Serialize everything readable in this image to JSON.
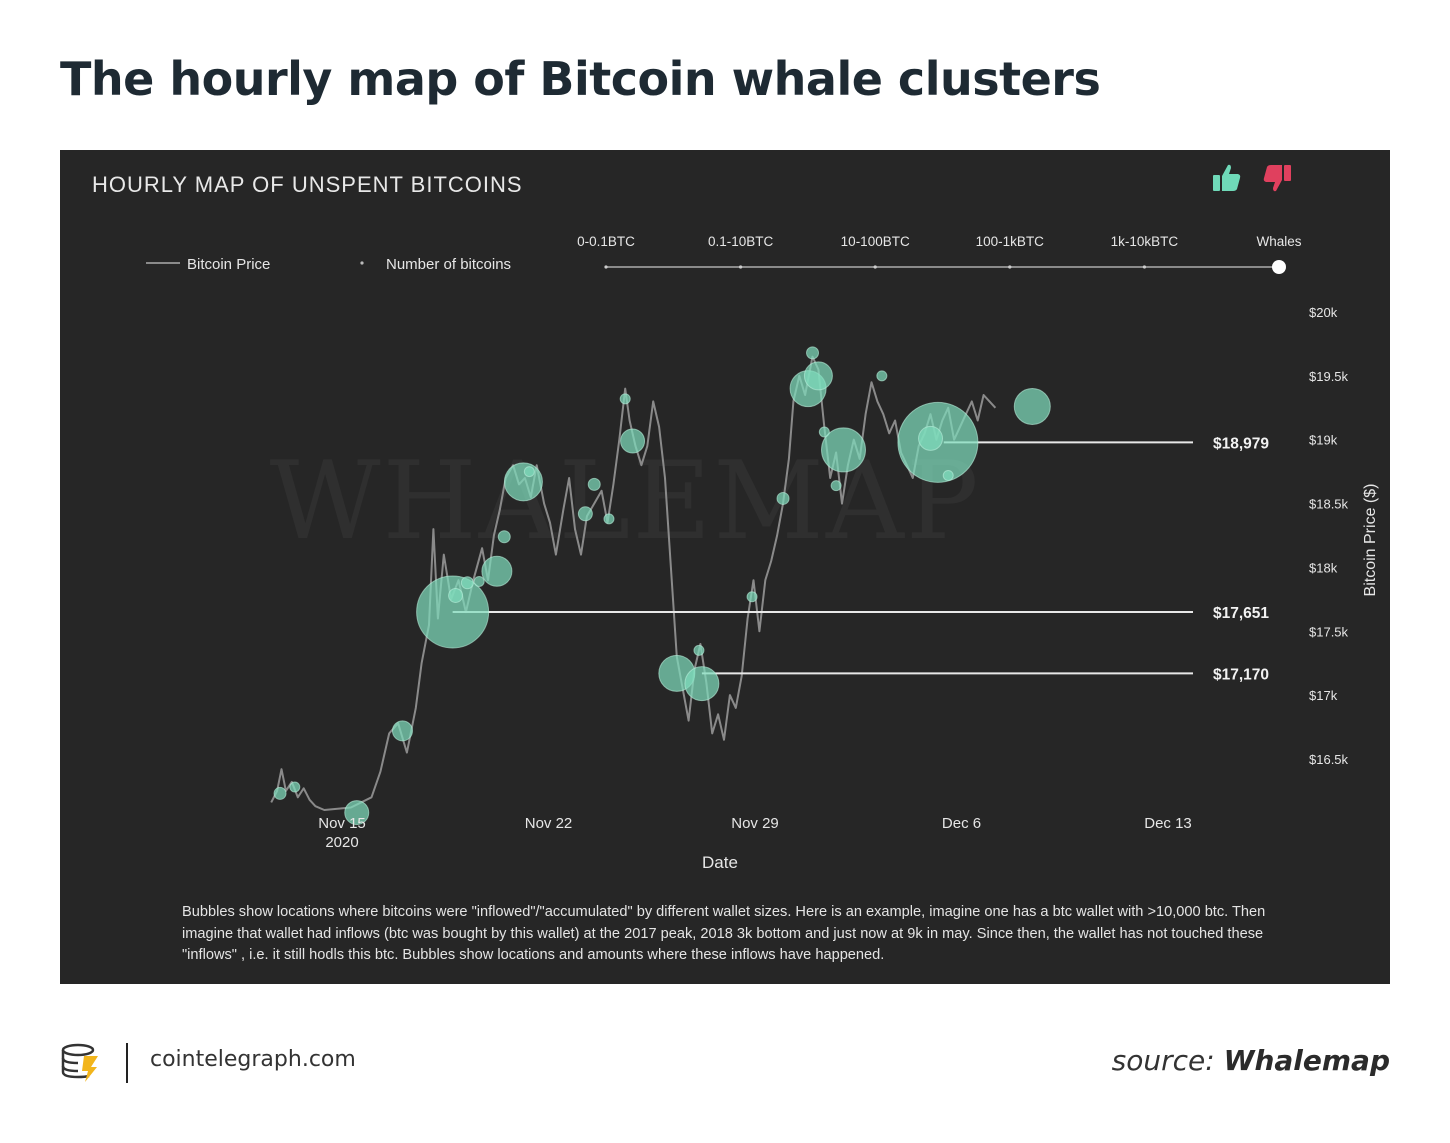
{
  "page_title": "The hourly map of Bitcoin whale clusters",
  "panel_title": "HOURLY MAP OF UNSPENT BITCOINS",
  "icons": {
    "like": "thumbs-up-icon",
    "dislike": "thumbs-down-icon",
    "brand": "cointelegraph-logo-icon"
  },
  "colors": {
    "background": "#262626",
    "bubble": "#7fdcbc",
    "like": "#6fd9b8",
    "dislike": "#e0405e",
    "price_line": "#8a8a8a"
  },
  "legend": {
    "price_label": "Bitcoin Price",
    "bubbles_label": "Number of bitcoins"
  },
  "size_slider": {
    "labels": [
      "0-0.1BTC",
      "0.1-10BTC",
      "10-100BTC",
      "100-1kBTC",
      "1k-10kBTC",
      "Whales"
    ],
    "selected_index": 5
  },
  "chart_data": {
    "type": "scatter",
    "title": "HOURLY MAP OF UNSPENT BITCOINS",
    "xlabel": "Date",
    "ylabel": "Bitcoin Price ($)",
    "x_ticks": [
      {
        "label": "Nov 15",
        "sub": "2020",
        "day": 0
      },
      {
        "label": "Nov 22",
        "sub": "",
        "day": 7
      },
      {
        "label": "Nov 29",
        "sub": "",
        "day": 14
      },
      {
        "label": "Dec 6",
        "sub": "",
        "day": 21
      },
      {
        "label": "Dec 13",
        "sub": "",
        "day": 28
      }
    ],
    "y_ticks": [
      {
        "label": "$16.5k",
        "value": 16500
      },
      {
        "label": "$17k",
        "value": 17000
      },
      {
        "label": "$17.5k",
        "value": 17500
      },
      {
        "label": "$18k",
        "value": 18000
      },
      {
        "label": "$18.5k",
        "value": 18500
      },
      {
        "label": "$19k",
        "value": 19000
      },
      {
        "label": "$19.5k",
        "value": 19500
      },
      {
        "label": "$20k",
        "value": 20000
      }
    ],
    "ylim": [
      16100,
      20000
    ],
    "price_series": {
      "name": "Bitcoin Price",
      "points": [
        [
          -2.4,
          16160
        ],
        [
          -2.2,
          16250
        ],
        [
          -2.05,
          16420
        ],
        [
          -1.9,
          16250
        ],
        [
          -1.7,
          16320
        ],
        [
          -1.5,
          16200
        ],
        [
          -1.3,
          16270
        ],
        [
          -1.1,
          16180
        ],
        [
          -0.9,
          16130
        ],
        [
          -0.6,
          16100
        ],
        [
          0.3,
          16120
        ],
        [
          1.0,
          16200
        ],
        [
          1.3,
          16400
        ],
        [
          1.6,
          16700
        ],
        [
          1.9,
          16780
        ],
        [
          2.2,
          16550
        ],
        [
          2.5,
          16900
        ],
        [
          2.7,
          17250
        ],
        [
          2.95,
          17550
        ],
        [
          3.1,
          18300
        ],
        [
          3.25,
          17600
        ],
        [
          3.45,
          18100
        ],
        [
          3.7,
          17750
        ],
        [
          3.95,
          17900
        ],
        [
          4.2,
          17650
        ],
        [
          4.45,
          17900
        ],
        [
          4.75,
          18150
        ],
        [
          4.95,
          17900
        ],
        [
          5.15,
          18250
        ],
        [
          5.35,
          18450
        ],
        [
          5.55,
          18700
        ],
        [
          5.8,
          18800
        ],
        [
          6.0,
          18650
        ],
        [
          6.2,
          18700
        ],
        [
          6.4,
          18550
        ],
        [
          6.6,
          18800
        ],
        [
          6.85,
          18500
        ],
        [
          7.05,
          18350
        ],
        [
          7.25,
          18100
        ],
        [
          7.5,
          18450
        ],
        [
          7.7,
          18700
        ],
        [
          7.9,
          18300
        ],
        [
          8.1,
          18100
        ],
        [
          8.3,
          18400
        ],
        [
          8.55,
          18500
        ],
        [
          8.8,
          18600
        ],
        [
          9.0,
          18350
        ],
        [
          9.2,
          18650
        ],
        [
          9.4,
          19000
        ],
        [
          9.6,
          19400
        ],
        [
          9.75,
          19150
        ],
        [
          9.95,
          18950
        ],
        [
          10.15,
          18800
        ],
        [
          10.35,
          18950
        ],
        [
          10.55,
          19300
        ],
        [
          10.75,
          19100
        ],
        [
          10.95,
          18700
        ],
        [
          11.15,
          18000
        ],
        [
          11.35,
          17300
        ],
        [
          11.55,
          17050
        ],
        [
          11.75,
          16800
        ],
        [
          11.95,
          17200
        ],
        [
          12.15,
          17400
        ],
        [
          12.35,
          17100
        ],
        [
          12.55,
          16700
        ],
        [
          12.75,
          16850
        ],
        [
          12.95,
          16650
        ],
        [
          13.15,
          17000
        ],
        [
          13.35,
          16900
        ],
        [
          13.55,
          17150
        ],
        [
          13.75,
          17600
        ],
        [
          13.95,
          17900
        ],
        [
          14.15,
          17500
        ],
        [
          14.35,
          17900
        ],
        [
          14.55,
          18050
        ],
        [
          14.75,
          18250
        ],
        [
          14.95,
          18500
        ],
        [
          15.15,
          18850
        ],
        [
          15.3,
          19300
        ],
        [
          15.5,
          19500
        ],
        [
          15.7,
          19350
        ],
        [
          15.95,
          19650
        ],
        [
          16.15,
          19550
        ],
        [
          16.35,
          19100
        ],
        [
          16.55,
          18700
        ],
        [
          16.75,
          18900
        ],
        [
          16.95,
          18500
        ],
        [
          17.15,
          18800
        ],
        [
          17.35,
          19000
        ],
        [
          17.55,
          18850
        ],
        [
          17.75,
          19200
        ],
        [
          17.95,
          19450
        ],
        [
          18.15,
          19300
        ],
        [
          18.35,
          19200
        ],
        [
          18.55,
          19050
        ],
        [
          18.75,
          19150
        ],
        [
          18.95,
          18900
        ],
        [
          19.15,
          18800
        ],
        [
          19.35,
          18700
        ],
        [
          19.55,
          18950
        ],
        [
          19.75,
          19050
        ],
        [
          19.95,
          19200
        ],
        [
          20.15,
          19000
        ],
        [
          20.35,
          19150
        ],
        [
          20.55,
          19250
        ],
        [
          20.75,
          19000
        ],
        [
          20.95,
          19100
        ],
        [
          21.15,
          19200
        ],
        [
          21.35,
          19300
        ],
        [
          21.55,
          19150
        ],
        [
          21.75,
          19350
        ],
        [
          21.95,
          19300
        ],
        [
          22.15,
          19250
        ]
      ]
    },
    "bubbles": [
      {
        "day": 3.75,
        "price": 17651,
        "size": 36
      },
      {
        "day": 3.85,
        "price": 17780,
        "size": 7
      },
      {
        "day": 5.25,
        "price": 17970,
        "size": 15
      },
      {
        "day": 5.5,
        "price": 18240,
        "size": 6
      },
      {
        "day": 6.15,
        "price": 18670,
        "size": 19
      },
      {
        "day": 6.35,
        "price": 18750,
        "size": 5
      },
      {
        "day": 2.05,
        "price": 16720,
        "size": 10
      },
      {
        "day": -2.1,
        "price": 16230,
        "size": 6
      },
      {
        "day": -1.6,
        "price": 16280,
        "size": 5
      },
      {
        "day": 0.5,
        "price": 16080,
        "size": 12
      },
      {
        "day": 4.25,
        "price": 17880,
        "size": 6
      },
      {
        "day": 4.65,
        "price": 17890,
        "size": 5
      },
      {
        "day": 8.25,
        "price": 18420,
        "size": 7
      },
      {
        "day": 8.55,
        "price": 18650,
        "size": 6
      },
      {
        "day": 9.05,
        "price": 18380,
        "size": 5
      },
      {
        "day": 9.85,
        "price": 18990,
        "size": 12
      },
      {
        "day": 9.6,
        "price": 19320,
        "size": 5
      },
      {
        "day": 11.35,
        "price": 17170,
        "size": 18
      },
      {
        "day": 12.2,
        "price": 17090,
        "size": 17
      },
      {
        "day": 12.1,
        "price": 17350,
        "size": 5
      },
      {
        "day": 13.9,
        "price": 17770,
        "size": 5
      },
      {
        "day": 14.95,
        "price": 18540,
        "size": 6
      },
      {
        "day": 15.8,
        "price": 19400,
        "size": 18
      },
      {
        "day": 16.15,
        "price": 19500,
        "size": 14
      },
      {
        "day": 15.95,
        "price": 19680,
        "size": 6
      },
      {
        "day": 16.35,
        "price": 19060,
        "size": 5
      },
      {
        "day": 17.0,
        "price": 18920,
        "size": 22
      },
      {
        "day": 18.3,
        "price": 19500,
        "size": 5
      },
      {
        "day": 20.2,
        "price": 18979,
        "size": 40
      },
      {
        "day": 19.95,
        "price": 19010,
        "size": 12
      },
      {
        "day": 23.4,
        "price": 19260,
        "size": 18
      },
      {
        "day": 16.75,
        "price": 18640,
        "size": 5
      },
      {
        "day": 20.55,
        "price": 18720,
        "size": 5
      }
    ],
    "levels": [
      {
        "label": "$18,979",
        "value": 18979,
        "from_day": 20.4
      },
      {
        "label": "$17,651",
        "value": 17651,
        "from_day": 3.75
      },
      {
        "label": "$17,170",
        "value": 17170,
        "from_day": 12.2
      }
    ],
    "watermark": "WHALEMAP"
  },
  "caption": "Bubbles show locations where bitcoins were \"inflowed\"/\"accumulated\" by different wallet sizes. Here is an example, imagine one has a btc wallet with >10,000 btc. Then imagine that wallet had inflows (btc was bought by this wallet) at the 2017 peak, 2018 3k bottom and just now at 9k in may. Since then, the wallet has not touched these \"inflows\" , i.e. it still hodls this btc. Bubbles show locations and amounts where these inflows have happened.",
  "footer": {
    "site": "cointelegraph.com",
    "source_prefix": "source:",
    "source_name": "Whalemap"
  }
}
